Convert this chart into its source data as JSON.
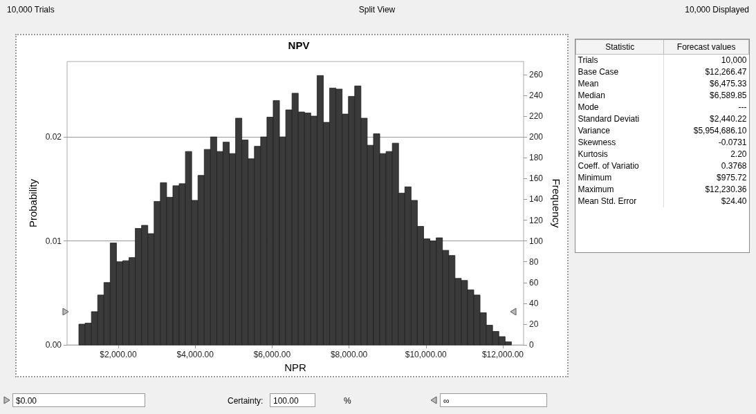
{
  "chart_data": [
    {
      "type": "histogram",
      "title": "NPV",
      "xlabel": "NPR",
      "ylabel": "Probability",
      "y2label": "Frequency",
      "bins": [
        976,
        1139,
        1302,
        1465,
        1628,
        1791,
        1954,
        2117,
        2280,
        2443,
        2606,
        2769,
        2932,
        3095,
        3258,
        3421,
        3584,
        3747,
        3910,
        4073,
        4236,
        4399,
        4562,
        4725,
        4888,
        5051,
        5214,
        5377,
        5540,
        5703,
        5866,
        6029,
        6192,
        6355,
        6518,
        6681,
        6844,
        7007,
        7170,
        7333,
        7496,
        7659,
        7822,
        7985,
        8148,
        8311,
        8474,
        8637,
        8800,
        8963,
        9126,
        9289,
        9452,
        9615,
        9778,
        9941,
        10104,
        10267,
        10430,
        10593,
        10756,
        10919,
        11082,
        11245,
        11408,
        11571,
        11734,
        11897,
        12060,
        12223
      ],
      "series": [
        {
          "color": "#3a3a3a",
          "axis": "y2",
          "values": [
            20,
            21,
            32,
            48,
            60,
            98,
            80,
            81,
            84,
            112,
            115,
            107,
            138,
            156,
            142,
            153,
            155,
            186,
            139,
            163,
            188,
            200,
            186,
            195,
            184,
            218,
            197,
            179,
            191,
            200,
            219,
            235,
            200,
            226,
            242,
            224,
            223,
            220,
            259,
            214,
            247,
            246,
            222,
            239,
            249,
            218,
            192,
            203,
            184,
            186,
            194,
            146,
            152,
            139,
            114,
            102,
            100,
            103,
            91,
            86,
            64,
            62,
            53,
            48,
            31,
            19,
            13,
            8,
            3
          ]
        }
      ],
      "xlim": [
        670,
        12540
      ],
      "xticks": [
        {
          "value": 2000,
          "label": "$2,000.00"
        },
        {
          "value": 4000,
          "label": "$4,000.00"
        },
        {
          "value": 6000,
          "label": "$6,000.00"
        },
        {
          "value": 8000,
          "label": "$8,000.00"
        },
        {
          "value": 10000,
          "label": "$10,000.00"
        },
        {
          "value": 12000,
          "label": "$12,000.00"
        }
      ],
      "ylim": [
        0,
        0.02725
      ],
      "yticks": [
        {
          "value": 0,
          "label": "0.00"
        },
        0.01,
        0.02
      ],
      "y2lim": [
        0,
        272.5
      ],
      "y2ticks": [
        0,
        20,
        40,
        60,
        80,
        100,
        120,
        140,
        160,
        180,
        200,
        220,
        240,
        260
      ],
      "grid": "y",
      "annotations": [
        "10,000 Trials",
        "Split View",
        "10,000 Displayed",
        "$0.00",
        "Certainty:",
        "100.00",
        "%",
        "∞"
      ]
    },
    {
      "type": "other",
      "annotations": [
        "Statistic",
        "Forecast values",
        "Trials",
        "10,000",
        "Base Case",
        "$12,266.47",
        "Mean",
        "$6,475.33",
        "Median",
        "$6,589.85",
        "Mode",
        "---",
        "Standard Deviati",
        "$2,440.22",
        "Variance",
        "$5,954,686.10",
        "Skewness",
        "-0.0731",
        "Kurtosis",
        "2.20",
        "Coeff. of Variatio",
        "0.3768",
        "Minimum",
        "$975.72",
        "Maximum",
        "$12,230.36",
        "Mean Std. Error",
        "$24.40"
      ]
    }
  ]
}
